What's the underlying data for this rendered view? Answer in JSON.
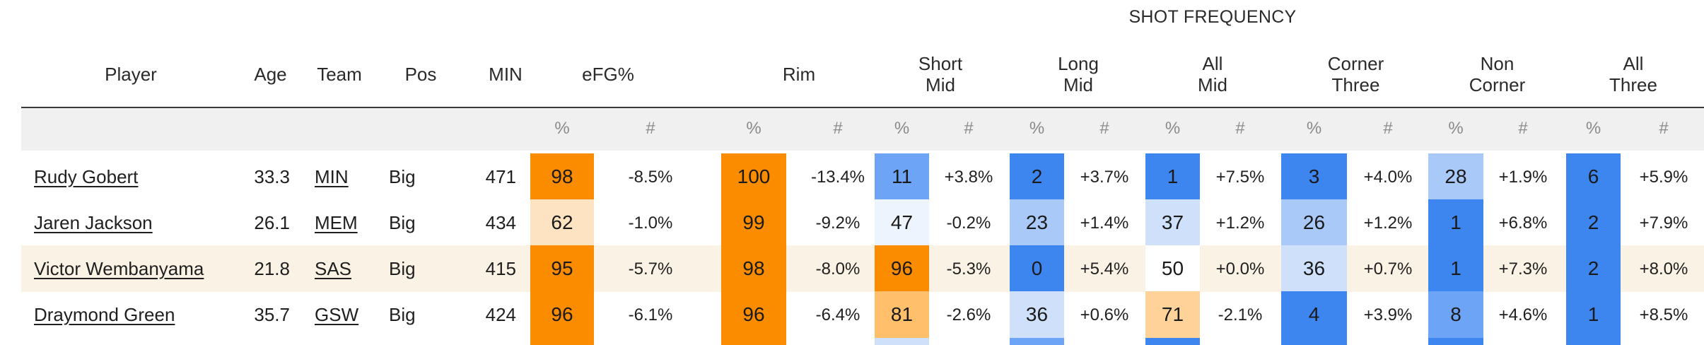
{
  "table": {
    "group_title": "SHOT FREQUENCY",
    "headers": {
      "player": "Player",
      "age": "Age",
      "team": "Team",
      "pos": "Pos",
      "min": "MIN",
      "efg": "eFG%",
      "rim": "Rim",
      "short_mid": [
        "Short",
        "Mid"
      ],
      "long_mid": [
        "Long",
        "Mid"
      ],
      "all_mid": [
        "All",
        "Mid"
      ],
      "corner_three": [
        "Corner",
        "Three"
      ],
      "non_corner": [
        "Non",
        "Corner"
      ],
      "all_three": [
        "All",
        "Three"
      ]
    },
    "subheaders": {
      "pct": "%",
      "num": "#"
    },
    "colors": {
      "orange_strong": "#fb8c00",
      "orange_mid": "#ffb74d",
      "orange_light": "#fde3c2",
      "blue_strong": "#3d86f0",
      "blue_mid": "#6ea4f5",
      "blue_light": "#a9c9f8",
      "blue_pale": "#cfe0fb",
      "blue_faint": "#e9f1fd",
      "row_highlight": "#fbf2e6"
    },
    "rows": [
      {
        "player": "Rudy Gobert",
        "age": "33.3",
        "team": "MIN",
        "pos": "Big",
        "min": "471",
        "efg": {
          "pct": "98",
          "num": "-8.5%",
          "color": "#fb8c00"
        },
        "rim": {
          "pct": "100",
          "num": "-13.4%",
          "color": "#fb8c00"
        },
        "short_mid": {
          "pct": "11",
          "num": "+3.8%",
          "color": "#6ea4f5"
        },
        "long_mid": {
          "pct": "2",
          "num": "+3.7%",
          "color": "#3d86f0"
        },
        "all_mid": {
          "pct": "1",
          "num": "+7.5%",
          "color": "#3d86f0"
        },
        "corner_three": {
          "pct": "3",
          "num": "+4.0%",
          "color": "#3d86f0"
        },
        "non_corner": {
          "pct": "28",
          "num": "+1.9%",
          "color": "#a9c9f8"
        },
        "all_three": {
          "pct": "6",
          "num": "+5.9%",
          "color": "#3d86f0"
        }
      },
      {
        "player": "Jaren Jackson",
        "age": "26.1",
        "team": "MEM",
        "pos": "Big",
        "min": "434",
        "efg": {
          "pct": "62",
          "num": "-1.0%",
          "color": "#fde3c2"
        },
        "rim": {
          "pct": "99",
          "num": "-9.2%",
          "color": "#fb8c00"
        },
        "short_mid": {
          "pct": "47",
          "num": "-0.2%",
          "color": "#eef4fd"
        },
        "long_mid": {
          "pct": "23",
          "num": "+1.4%",
          "color": "#a9c9f8"
        },
        "all_mid": {
          "pct": "37",
          "num": "+1.2%",
          "color": "#cfe0fb"
        },
        "corner_three": {
          "pct": "26",
          "num": "+1.2%",
          "color": "#a9c9f8"
        },
        "non_corner": {
          "pct": "1",
          "num": "+6.8%",
          "color": "#3d86f0"
        },
        "all_three": {
          "pct": "2",
          "num": "+7.9%",
          "color": "#3d86f0"
        }
      },
      {
        "player": "Victor Wembanyama",
        "age": "21.8",
        "team": "SAS",
        "pos": "Big",
        "min": "415",
        "efg": {
          "pct": "95",
          "num": "-5.7%",
          "color": "#fb8c00"
        },
        "rim": {
          "pct": "98",
          "num": "-8.0%",
          "color": "#fb8c00"
        },
        "short_mid": {
          "pct": "96",
          "num": "-5.3%",
          "color": "#fb8c00"
        },
        "long_mid": {
          "pct": "0",
          "num": "+5.4%",
          "color": "#3d86f0"
        },
        "all_mid": {
          "pct": "50",
          "num": "+0.0%",
          "color": "#ffffff"
        },
        "corner_three": {
          "pct": "36",
          "num": "+0.7%",
          "color": "#cfe0fb"
        },
        "non_corner": {
          "pct": "1",
          "num": "+7.3%",
          "color": "#3d86f0"
        },
        "all_three": {
          "pct": "2",
          "num": "+8.0%",
          "color": "#3d86f0"
        }
      },
      {
        "player": "Draymond Green",
        "age": "35.7",
        "team": "GSW",
        "pos": "Big",
        "min": "424",
        "efg": {
          "pct": "96",
          "num": "-6.1%",
          "color": "#fb8c00"
        },
        "rim": {
          "pct": "96",
          "num": "-6.4%",
          "color": "#fb8c00"
        },
        "short_mid": {
          "pct": "81",
          "num": "-2.6%",
          "color": "#ffbf6b"
        },
        "long_mid": {
          "pct": "36",
          "num": "+0.6%",
          "color": "#cfe0fb"
        },
        "all_mid": {
          "pct": "71",
          "num": "-2.1%",
          "color": "#ffd29a"
        },
        "corner_three": {
          "pct": "4",
          "num": "+3.9%",
          "color": "#3d86f0"
        },
        "non_corner": {
          "pct": "8",
          "num": "+4.6%",
          "color": "#6ea4f5"
        },
        "all_three": {
          "pct": "1",
          "num": "+8.5%",
          "color": "#3d86f0"
        }
      }
    ]
  }
}
